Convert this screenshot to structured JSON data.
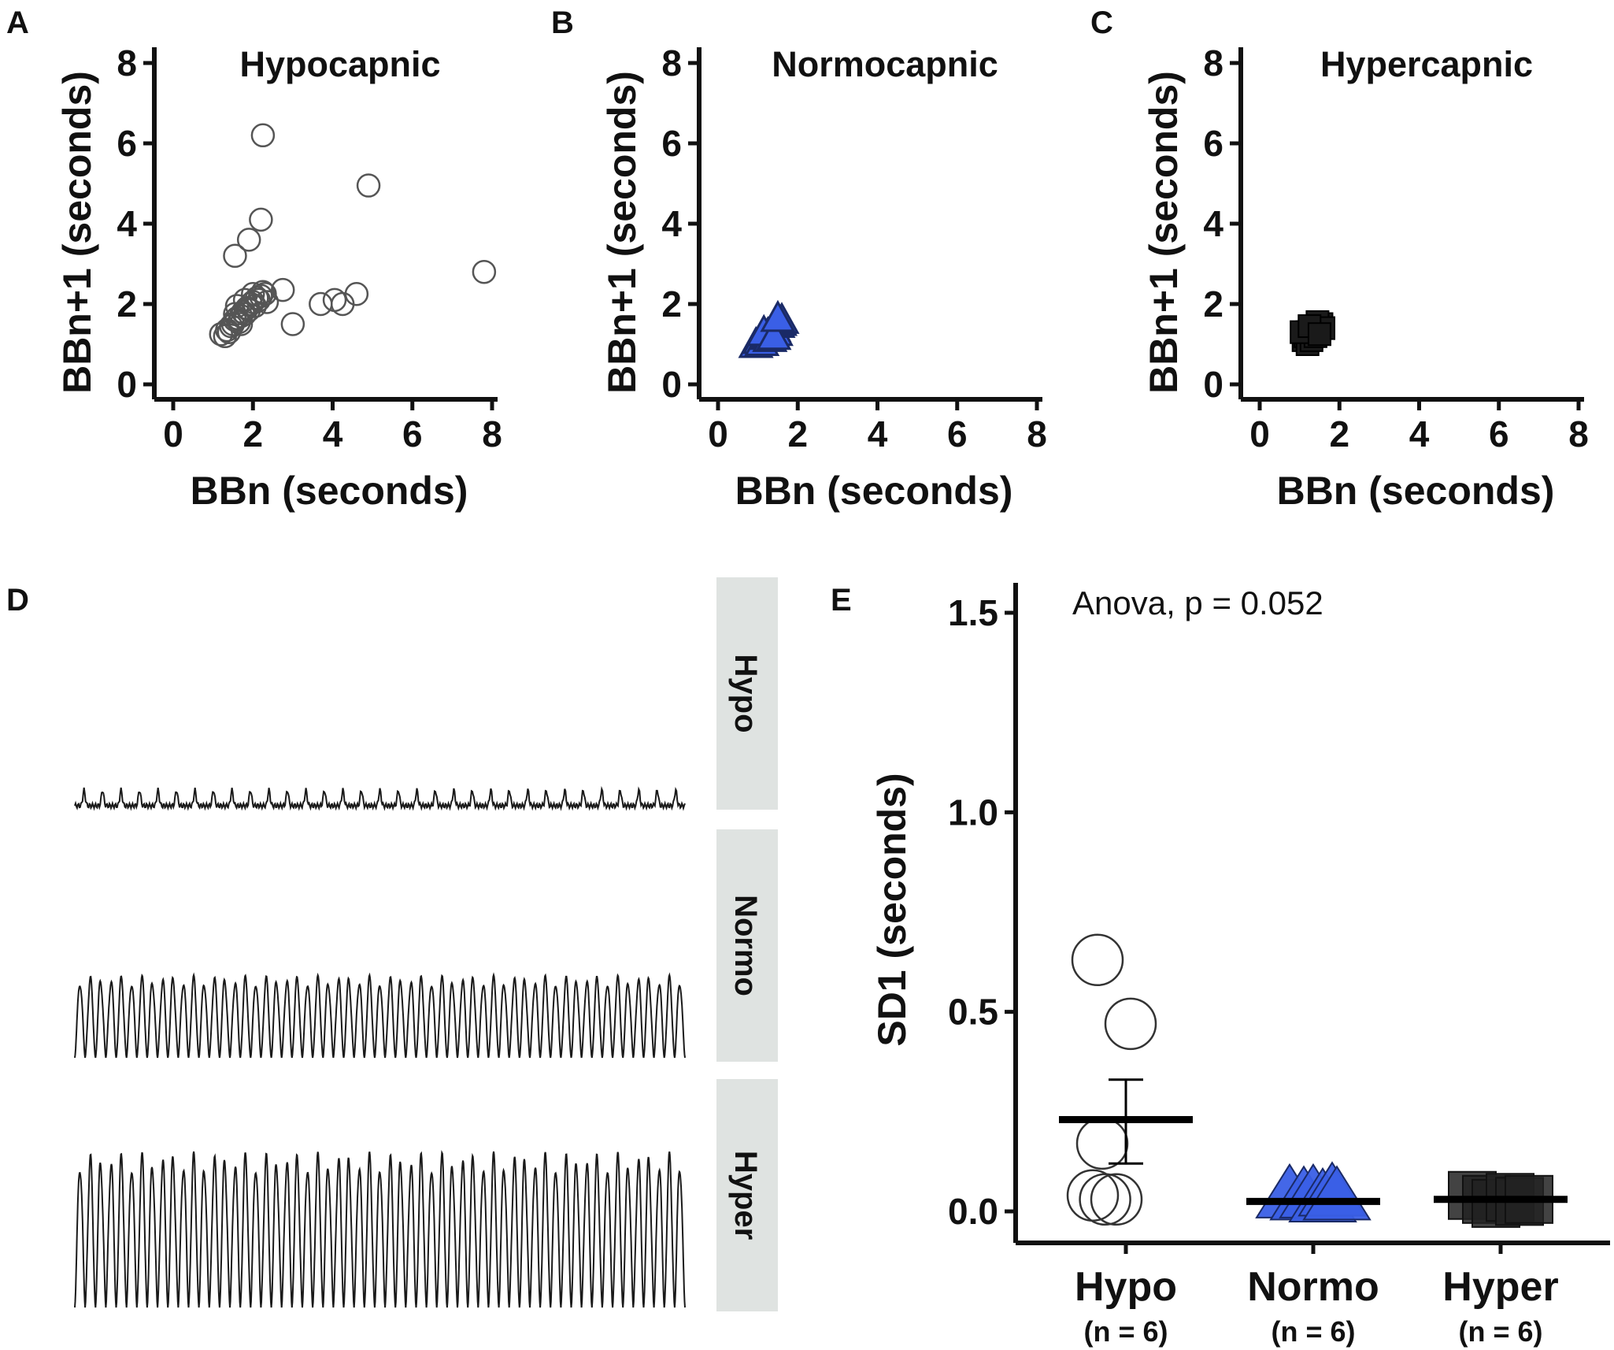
{
  "colors": {
    "hypo_stroke": "#555555",
    "normo_fill": "#3a5fe6",
    "normo_stroke": "#1a2a66",
    "hyper_fill": "#1a1a1a",
    "strip_bg": "#dfe3e1",
    "axis": "#111111"
  },
  "panels": {
    "A": {
      "letter": "A",
      "title": "Hypocapnic"
    },
    "B": {
      "letter": "B",
      "title": "Normocapnic"
    },
    "C": {
      "letter": "C",
      "title": "Hypercapnic"
    },
    "D": {
      "letter": "D"
    },
    "E": {
      "letter": "E"
    }
  },
  "chart_data": [
    {
      "id": "A",
      "type": "scatter",
      "title": "Hypocapnic",
      "xlabel": "BBn (seconds)",
      "ylabel": "BBn+1 (seconds)",
      "xlim": [
        0,
        8
      ],
      "ylim": [
        0,
        8
      ],
      "xticks": [
        "0",
        "2",
        "4",
        "6",
        "8"
      ],
      "yticks": [
        "0",
        "2",
        "4",
        "6",
        "8"
      ],
      "marker": "open-circle",
      "points": [
        [
          2.25,
          6.2
        ],
        [
          4.9,
          4.95
        ],
        [
          7.8,
          2.8
        ],
        [
          2.2,
          4.1
        ],
        [
          1.9,
          3.6
        ],
        [
          1.55,
          3.2
        ],
        [
          2.75,
          2.35
        ],
        [
          3.0,
          1.5
        ],
        [
          3.7,
          2.0
        ],
        [
          4.05,
          2.1
        ],
        [
          4.25,
          2.0
        ],
        [
          4.6,
          2.25
        ],
        [
          1.2,
          1.25
        ],
        [
          1.3,
          1.2
        ],
        [
          1.35,
          1.35
        ],
        [
          1.45,
          1.45
        ],
        [
          1.5,
          1.5
        ],
        [
          1.55,
          1.6
        ],
        [
          1.6,
          1.65
        ],
        [
          1.65,
          1.55
        ],
        [
          1.7,
          1.7
        ],
        [
          1.75,
          1.8
        ],
        [
          1.8,
          1.75
        ],
        [
          1.85,
          1.9
        ],
        [
          1.9,
          1.85
        ],
        [
          1.95,
          2.0
        ],
        [
          2.0,
          2.05
        ],
        [
          2.05,
          1.95
        ],
        [
          2.1,
          2.15
        ],
        [
          2.15,
          2.1
        ],
        [
          2.2,
          2.2
        ],
        [
          2.25,
          2.3
        ],
        [
          2.3,
          2.25
        ],
        [
          2.35,
          2.05
        ],
        [
          1.6,
          1.95
        ],
        [
          1.8,
          2.1
        ],
        [
          1.4,
          1.3
        ],
        [
          1.55,
          1.75
        ],
        [
          2.0,
          2.25
        ],
        [
          1.7,
          1.5
        ]
      ]
    },
    {
      "id": "B",
      "type": "scatter",
      "title": "Normocapnic",
      "xlabel": "BBn (seconds)",
      "ylabel": "BBn+1 (seconds)",
      "xlim": [
        0,
        8
      ],
      "ylim": [
        0,
        8
      ],
      "xticks": [
        "0",
        "2",
        "4",
        "6",
        "8"
      ],
      "yticks": [
        "0",
        "2",
        "4",
        "6",
        "8"
      ],
      "marker": "filled-triangle",
      "points": [
        [
          0.95,
          1.0
        ],
        [
          1.05,
          1.1
        ],
        [
          1.1,
          1.05
        ],
        [
          1.2,
          1.2
        ],
        [
          1.25,
          1.25
        ],
        [
          1.3,
          1.15
        ],
        [
          1.35,
          1.35
        ],
        [
          1.4,
          1.4
        ],
        [
          1.45,
          1.3
        ],
        [
          1.5,
          1.5
        ],
        [
          1.55,
          1.55
        ],
        [
          1.6,
          1.6
        ],
        [
          1.15,
          1.3
        ],
        [
          1.4,
          1.2
        ],
        [
          1.5,
          1.65
        ]
      ]
    },
    {
      "id": "C",
      "type": "scatter",
      "title": "Hypercapnic",
      "xlabel": "BBn (seconds)",
      "ylabel": "BBn+1 (seconds)",
      "xlim": [
        0,
        8
      ],
      "ylim": [
        0,
        8
      ],
      "xticks": [
        "0",
        "2",
        "4",
        "6",
        "8"
      ],
      "yticks": [
        "0",
        "2",
        "4",
        "6",
        "8"
      ],
      "marker": "filled-square",
      "points": [
        [
          1.1,
          1.1
        ],
        [
          1.15,
          1.2
        ],
        [
          1.2,
          1.3
        ],
        [
          1.25,
          1.15
        ],
        [
          1.3,
          1.35
        ],
        [
          1.35,
          1.25
        ],
        [
          1.4,
          1.4
        ],
        [
          1.45,
          1.3
        ],
        [
          1.5,
          1.45
        ],
        [
          1.55,
          1.5
        ],
        [
          1.2,
          1.0
        ],
        [
          1.3,
          1.1
        ],
        [
          1.4,
          1.2
        ],
        [
          1.45,
          1.55
        ],
        [
          1.6,
          1.4
        ],
        [
          1.05,
          1.3
        ],
        [
          1.25,
          1.45
        ],
        [
          1.5,
          1.25
        ]
      ]
    },
    {
      "id": "D",
      "type": "line",
      "description_free": true,
      "strips": [
        "Hypo",
        "Normo",
        "Hyper"
      ],
      "traces": [
        {
          "name": "Hypo",
          "cycles": 33,
          "amplitude": 0.12
        },
        {
          "name": "Normo",
          "cycles": 59,
          "amplitude": 1.0
        },
        {
          "name": "Hyper",
          "cycles": 59,
          "amplitude": 1.85
        }
      ]
    },
    {
      "id": "E",
      "type": "scatter",
      "annotation": "Anova, p = 0.052",
      "ylabel": "SD1 (seconds)",
      "ylim": [
        -0.07,
        1.58
      ],
      "yticks": [
        "0.0",
        "0.5",
        "1.0",
        "1.5"
      ],
      "ytick_values": [
        0.0,
        0.5,
        1.0,
        1.5
      ],
      "categories": [
        "Hypo",
        "Normo",
        "Hyper"
      ],
      "n_labels": [
        "(n = 6)",
        "(n = 6)",
        "(n = 6)"
      ],
      "groups": [
        {
          "name": "Hypo",
          "marker": "open-circle",
          "values": [
            0.63,
            0.47,
            0.17,
            0.04,
            0.03,
            0.03
          ],
          "jitter": [
            -0.3,
            0.05,
            -0.25,
            -0.35,
            -0.22,
            -0.1
          ],
          "mean": 0.23,
          "sem_low": 0.12,
          "sem_high": 0.33
        },
        {
          "name": "Normo",
          "marker": "filled-triangle",
          "values": [
            0.03,
            0.025,
            0.03,
            0.02,
            0.035,
            0.025
          ],
          "jitter": [
            -0.25,
            -0.1,
            0.0,
            0.1,
            0.2,
            0.25
          ],
          "mean": 0.025,
          "sem_low": 0.02,
          "sem_high": 0.03
        },
        {
          "name": "Hyper",
          "marker": "filled-square",
          "values": [
            0.04,
            0.03,
            0.02,
            0.035,
            0.025,
            0.03
          ],
          "jitter": [
            -0.3,
            -0.15,
            -0.05,
            0.1,
            0.2,
            0.3
          ],
          "mean": 0.03,
          "sem_low": 0.025,
          "sem_high": 0.035
        }
      ]
    }
  ]
}
